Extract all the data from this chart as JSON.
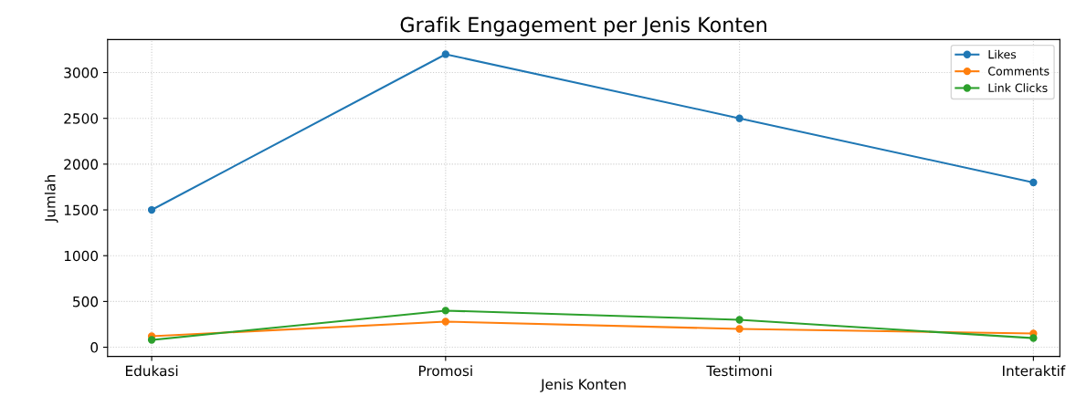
{
  "chart_data": {
    "type": "line",
    "title": "Grafik Engagement per Jenis Konten",
    "xlabel": "Jenis Konten",
    "ylabel": "Jumlah",
    "categories": [
      "Edukasi",
      "Promosi",
      "Testimoni",
      "Interaktif"
    ],
    "series": [
      {
        "name": "Likes",
        "color": "#1f77b4",
        "values": [
          1500,
          3200,
          2500,
          1800
        ]
      },
      {
        "name": "Comments",
        "color": "#ff7f0e",
        "values": [
          120,
          280,
          200,
          150
        ]
      },
      {
        "name": "Link Clicks",
        "color": "#2ca02c",
        "values": [
          80,
          400,
          300,
          100
        ]
      }
    ],
    "ylim": [
      -100,
      3360
    ],
    "yticks": [
      0,
      500,
      1000,
      1500,
      2000,
      2500,
      3000
    ],
    "grid": true,
    "legend": "top right",
    "marker": "circle",
    "line_style": "solid"
  }
}
